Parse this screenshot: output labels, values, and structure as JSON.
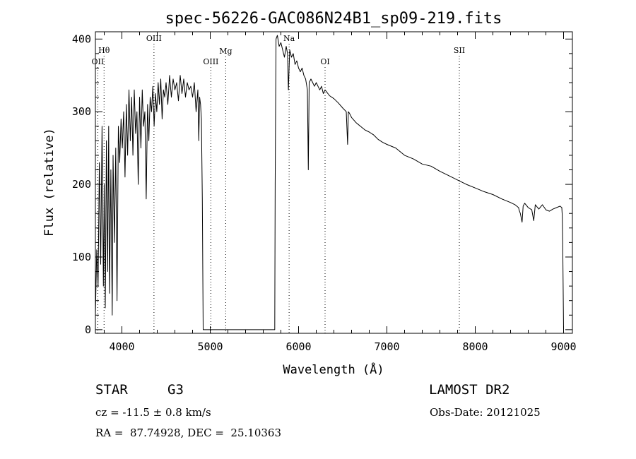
{
  "chart_data": {
    "type": "line",
    "title": "spec-56226-GAC086N24B1_sp09-219.fits",
    "xlabel": "Wavelength (Å)",
    "ylabel": "Flux (relative)",
    "xlim": [
      3700,
      9100
    ],
    "ylim": [
      -5,
      410
    ],
    "xticks": [
      4000,
      5000,
      6000,
      7000,
      8000,
      9000
    ],
    "yticks": [
      0,
      100,
      200,
      300,
      400
    ],
    "grid": false,
    "series": [
      {
        "x": [
          3700,
          3715,
          3730,
          3745,
          3760,
          3775,
          3790,
          3800,
          3812,
          3825,
          3838,
          3850,
          3860,
          3875,
          3890,
          3900,
          3915,
          3930,
          3945,
          3960,
          3975,
          3990,
          4005,
          4020,
          4035,
          4050,
          4065,
          4080,
          4095,
          4110,
          4125,
          4140,
          4155,
          4170,
          4185,
          4200,
          4215,
          4230,
          4245,
          4260,
          4275,
          4290,
          4305,
          4320,
          4335,
          4350,
          4365,
          4380,
          4395,
          4410,
          4425,
          4440,
          4455,
          4470,
          4485,
          4500,
          4520,
          4540,
          4560,
          4580,
          4600,
          4620,
          4640,
          4660,
          4680,
          4700,
          4720,
          4740,
          4760,
          4780,
          4800,
          4820,
          4840,
          4860,
          4870,
          4880,
          4890,
          4900,
          4910,
          4920,
          5000,
          5200,
          5400,
          5600,
          5700,
          5730,
          5735,
          5745,
          5760,
          5780,
          5800,
          5820,
          5840,
          5860,
          5875,
          5885,
          5893,
          5900,
          5920,
          5940,
          5960,
          5980,
          6000,
          6020,
          6040,
          6060,
          6080,
          6100,
          6110,
          6120,
          6140,
          6160,
          6180,
          6200,
          6220,
          6240,
          6260,
          6280,
          6300,
          6350,
          6400,
          6450,
          6500,
          6540,
          6555,
          6563,
          6575,
          6600,
          6650,
          6700,
          6750,
          6800,
          6850,
          6900,
          6950,
          7000,
          7100,
          7200,
          7300,
          7400,
          7500,
          7600,
          7700,
          7800,
          7900,
          8000,
          8100,
          8200,
          8300,
          8400,
          8450,
          8490,
          8498,
          8510,
          8530,
          8542,
          8560,
          8600,
          8640,
          8662,
          8680,
          8720,
          8760,
          8800,
          8840,
          8880,
          8920,
          8960,
          8980,
          8985,
          8990,
          8995,
          9000
        ],
        "y": [
          20,
          110,
          60,
          230,
          90,
          280,
          60,
          200,
          30,
          260,
          80,
          280,
          50,
          220,
          20,
          240,
          120,
          250,
          40,
          280,
          230,
          290,
          250,
          300,
          210,
          310,
          240,
          330,
          260,
          320,
          240,
          330,
          270,
          300,
          200,
          320,
          250,
          330,
          280,
          300,
          180,
          310,
          260,
          320,
          300,
          335,
          280,
          325,
          300,
          340,
          310,
          345,
          290,
          330,
          320,
          340,
          310,
          350,
          320,
          345,
          330,
          340,
          315,
          350,
          325,
          345,
          320,
          340,
          330,
          335,
          320,
          340,
          300,
          330,
          260,
          320,
          310,
          290,
          180,
          0,
          0,
          0,
          0,
          0,
          0,
          0,
          200,
          400,
          405,
          390,
          395,
          385,
          375,
          390,
          380,
          330,
          360,
          385,
          375,
          380,
          365,
          370,
          360,
          355,
          360,
          350,
          345,
          330,
          220,
          340,
          345,
          340,
          335,
          340,
          335,
          330,
          335,
          325,
          330,
          322,
          318,
          312,
          305,
          300,
          255,
          300,
          298,
          292,
          285,
          280,
          275,
          272,
          268,
          262,
          258,
          255,
          250,
          240,
          235,
          228,
          225,
          218,
          212,
          206,
          200,
          195,
          190,
          186,
          180,
          175,
          172,
          168,
          164,
          160,
          148,
          170,
          174,
          168,
          165,
          150,
          172,
          166,
          172,
          165,
          163,
          166,
          168,
          170,
          168,
          158,
          120,
          60,
          0
        ]
      }
    ],
    "lines": [
      {
        "label": "Hθ",
        "x": 3798
      },
      {
        "label": "OII",
        "x": 3727
      },
      {
        "label": "OIII",
        "x": 4363
      },
      {
        "label": "OIII",
        "x": 5007
      },
      {
        "label": "Mg",
        "x": 5175
      },
      {
        "label": "Na",
        "x": 5893
      },
      {
        "label": "OI",
        "x": 6300
      },
      {
        "label": "SII",
        "x": 7820
      }
    ]
  },
  "info": {
    "object_class": "STAR",
    "subclass": "G3",
    "survey": "LAMOST DR2",
    "cz_text": "cz = -11.5 ± 0.8 km/s",
    "obs_date_text": "Obs-Date: 20121025",
    "coords_text": "RA =  87.74928, DEC =  25.10363"
  }
}
